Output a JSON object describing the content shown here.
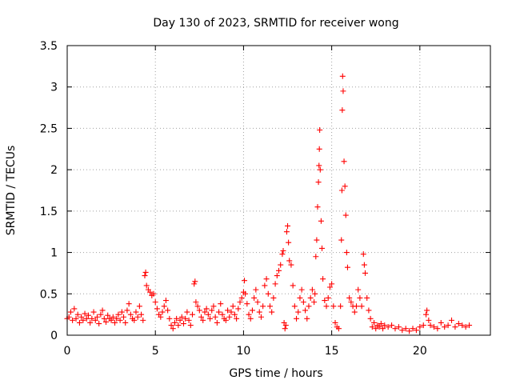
{
  "chart_data": {
    "type": "scatter",
    "title": "Day 130 of 2023, SRMTID for receiver wong",
    "xlabel": "GPS time / hours",
    "ylabel": "SRMTID / TECUs",
    "xlim": [
      0,
      24
    ],
    "ylim": [
      0,
      3.5
    ],
    "xticks": [
      0,
      5,
      10,
      15,
      20
    ],
    "xtick_labels": [
      "0",
      "5",
      "10",
      "15",
      "20"
    ],
    "yticks": [
      0,
      0.5,
      1,
      1.5,
      2,
      2.5,
      3,
      3.5
    ],
    "ytick_labels": [
      "0",
      "0.5",
      "1",
      "1.5",
      "2",
      "2.5",
      "3",
      "3.5"
    ],
    "grid": true,
    "marker": "+",
    "color": "#ff0000",
    "series": [
      {
        "name": "SRMTID",
        "points": [
          [
            0.0,
            0.2
          ],
          [
            0.1,
            0.22
          ],
          [
            0.2,
            0.28
          ],
          [
            0.3,
            0.18
          ],
          [
            0.4,
            0.32
          ],
          [
            0.5,
            0.2
          ],
          [
            0.6,
            0.25
          ],
          [
            0.7,
            0.15
          ],
          [
            0.8,
            0.22
          ],
          [
            0.9,
            0.18
          ],
          [
            1.0,
            0.26
          ],
          [
            1.1,
            0.2
          ],
          [
            1.2,
            0.24
          ],
          [
            1.3,
            0.15
          ],
          [
            1.4,
            0.2
          ],
          [
            1.5,
            0.28
          ],
          [
            1.6,
            0.18
          ],
          [
            1.7,
            0.22
          ],
          [
            1.8,
            0.14
          ],
          [
            1.9,
            0.25
          ],
          [
            2.0,
            0.3
          ],
          [
            2.1,
            0.2
          ],
          [
            2.2,
            0.16
          ],
          [
            2.3,
            0.24
          ],
          [
            2.4,
            0.2
          ],
          [
            2.5,
            0.18
          ],
          [
            2.6,
            0.22
          ],
          [
            2.7,
            0.15
          ],
          [
            2.8,
            0.2
          ],
          [
            2.9,
            0.25
          ],
          [
            3.0,
            0.18
          ],
          [
            3.1,
            0.28
          ],
          [
            3.2,
            0.22
          ],
          [
            3.3,
            0.15
          ],
          [
            3.4,
            0.3
          ],
          [
            3.5,
            0.38
          ],
          [
            3.6,
            0.25
          ],
          [
            3.7,
            0.2
          ],
          [
            3.8,
            0.18
          ],
          [
            3.9,
            0.28
          ],
          [
            4.0,
            0.22
          ],
          [
            4.1,
            0.35
          ],
          [
            4.2,
            0.25
          ],
          [
            4.3,
            0.18
          ],
          [
            4.4,
            0.72
          ],
          [
            4.45,
            0.76
          ],
          [
            4.5,
            0.6
          ],
          [
            4.6,
            0.55
          ],
          [
            4.7,
            0.52
          ],
          [
            4.8,
            0.48
          ],
          [
            4.9,
            0.5
          ],
          [
            5.0,
            0.4
          ],
          [
            5.1,
            0.32
          ],
          [
            5.2,
            0.25
          ],
          [
            5.3,
            0.22
          ],
          [
            5.4,
            0.28
          ],
          [
            5.5,
            0.35
          ],
          [
            5.6,
            0.42
          ],
          [
            5.7,
            0.3
          ],
          [
            5.8,
            0.2
          ],
          [
            5.9,
            0.12
          ],
          [
            6.0,
            0.08
          ],
          [
            6.1,
            0.15
          ],
          [
            6.2,
            0.2
          ],
          [
            6.3,
            0.12
          ],
          [
            6.4,
            0.18
          ],
          [
            6.5,
            0.22
          ],
          [
            6.6,
            0.14
          ],
          [
            6.7,
            0.2
          ],
          [
            6.8,
            0.28
          ],
          [
            6.9,
            0.18
          ],
          [
            7.0,
            0.12
          ],
          [
            7.1,
            0.25
          ],
          [
            7.2,
            0.62
          ],
          [
            7.25,
            0.65
          ],
          [
            7.3,
            0.4
          ],
          [
            7.4,
            0.35
          ],
          [
            7.5,
            0.3
          ],
          [
            7.6,
            0.22
          ],
          [
            7.7,
            0.18
          ],
          [
            7.8,
            0.28
          ],
          [
            7.9,
            0.32
          ],
          [
            8.0,
            0.25
          ],
          [
            8.1,
            0.2
          ],
          [
            8.2,
            0.3
          ],
          [
            8.3,
            0.35
          ],
          [
            8.4,
            0.22
          ],
          [
            8.5,
            0.15
          ],
          [
            8.6,
            0.28
          ],
          [
            8.7,
            0.38
          ],
          [
            8.8,
            0.25
          ],
          [
            8.9,
            0.2
          ],
          [
            9.0,
            0.18
          ],
          [
            9.1,
            0.3
          ],
          [
            9.2,
            0.22
          ],
          [
            9.3,
            0.28
          ],
          [
            9.4,
            0.35
          ],
          [
            9.5,
            0.25
          ],
          [
            9.6,
            0.2
          ],
          [
            9.7,
            0.32
          ],
          [
            9.8,
            0.4
          ],
          [
            9.9,
            0.45
          ],
          [
            10.0,
            0.52
          ],
          [
            10.05,
            0.66
          ],
          [
            10.1,
            0.5
          ],
          [
            10.2,
            0.38
          ],
          [
            10.3,
            0.25
          ],
          [
            10.4,
            0.2
          ],
          [
            10.5,
            0.3
          ],
          [
            10.6,
            0.45
          ],
          [
            10.7,
            0.55
          ],
          [
            10.8,
            0.4
          ],
          [
            10.9,
            0.28
          ],
          [
            11.0,
            0.22
          ],
          [
            11.1,
            0.35
          ],
          [
            11.2,
            0.6
          ],
          [
            11.3,
            0.68
          ],
          [
            11.4,
            0.5
          ],
          [
            11.5,
            0.35
          ],
          [
            11.6,
            0.28
          ],
          [
            11.7,
            0.45
          ],
          [
            11.8,
            0.62
          ],
          [
            11.9,
            0.72
          ],
          [
            12.0,
            0.78
          ],
          [
            12.1,
            0.85
          ],
          [
            12.2,
            0.98
          ],
          [
            12.25,
            1.02
          ],
          [
            12.3,
            0.15
          ],
          [
            12.35,
            0.08
          ],
          [
            12.4,
            0.12
          ],
          [
            12.45,
            1.25
          ],
          [
            12.5,
            1.32
          ],
          [
            12.55,
            1.12
          ],
          [
            12.6,
            0.9
          ],
          [
            12.7,
            0.85
          ],
          [
            12.8,
            0.6
          ],
          [
            12.9,
            0.35
          ],
          [
            13.0,
            0.2
          ],
          [
            13.1,
            0.28
          ],
          [
            13.2,
            0.45
          ],
          [
            13.3,
            0.55
          ],
          [
            13.4,
            0.4
          ],
          [
            13.5,
            0.3
          ],
          [
            13.6,
            0.2
          ],
          [
            13.7,
            0.35
          ],
          [
            13.8,
            0.45
          ],
          [
            13.9,
            0.55
          ],
          [
            14.0,
            0.4
          ],
          [
            14.05,
            0.5
          ],
          [
            14.1,
            0.95
          ],
          [
            14.15,
            1.15
          ],
          [
            14.2,
            1.55
          ],
          [
            14.25,
            1.85
          ],
          [
            14.28,
            2.05
          ],
          [
            14.3,
            2.25
          ],
          [
            14.32,
            2.48
          ],
          [
            14.35,
            2.0
          ],
          [
            14.4,
            1.38
          ],
          [
            14.45,
            1.05
          ],
          [
            14.5,
            0.68
          ],
          [
            14.6,
            0.42
          ],
          [
            14.7,
            0.35
          ],
          [
            14.8,
            0.45
          ],
          [
            14.9,
            0.58
          ],
          [
            15.0,
            0.62
          ],
          [
            15.1,
            0.35
          ],
          [
            15.2,
            0.15
          ],
          [
            15.3,
            0.1
          ],
          [
            15.4,
            0.08
          ],
          [
            15.5,
            0.35
          ],
          [
            15.55,
            1.15
          ],
          [
            15.58,
            1.75
          ],
          [
            15.6,
            2.72
          ],
          [
            15.62,
            3.13
          ],
          [
            15.65,
            2.95
          ],
          [
            15.7,
            2.1
          ],
          [
            15.75,
            1.8
          ],
          [
            15.8,
            1.45
          ],
          [
            15.85,
            1.0
          ],
          [
            15.9,
            0.82
          ],
          [
            16.0,
            0.45
          ],
          [
            16.1,
            0.4
          ],
          [
            16.2,
            0.35
          ],
          [
            16.3,
            0.28
          ],
          [
            16.4,
            0.35
          ],
          [
            16.5,
            0.55
          ],
          [
            16.6,
            0.45
          ],
          [
            16.7,
            0.35
          ],
          [
            16.8,
            0.98
          ],
          [
            16.85,
            0.85
          ],
          [
            16.9,
            0.75
          ],
          [
            17.0,
            0.45
          ],
          [
            17.1,
            0.3
          ],
          [
            17.2,
            0.2
          ],
          [
            17.3,
            0.1
          ],
          [
            17.4,
            0.15
          ],
          [
            17.5,
            0.08
          ],
          [
            17.6,
            0.12
          ],
          [
            17.7,
            0.1
          ],
          [
            17.8,
            0.14
          ],
          [
            17.9,
            0.08
          ],
          [
            18.0,
            0.12
          ],
          [
            18.2,
            0.1
          ],
          [
            18.4,
            0.12
          ],
          [
            18.6,
            0.08
          ],
          [
            18.8,
            0.1
          ],
          [
            19.0,
            0.06
          ],
          [
            19.2,
            0.08
          ],
          [
            19.4,
            0.05
          ],
          [
            19.6,
            0.08
          ],
          [
            19.8,
            0.06
          ],
          [
            20.0,
            0.1
          ],
          [
            20.2,
            0.12
          ],
          [
            20.35,
            0.25
          ],
          [
            20.4,
            0.3
          ],
          [
            20.5,
            0.18
          ],
          [
            20.6,
            0.12
          ],
          [
            20.8,
            0.1
          ],
          [
            21.0,
            0.08
          ],
          [
            21.2,
            0.15
          ],
          [
            21.4,
            0.1
          ],
          [
            21.6,
            0.12
          ],
          [
            21.8,
            0.18
          ],
          [
            22.0,
            0.1
          ],
          [
            22.2,
            0.14
          ],
          [
            22.4,
            0.12
          ],
          [
            22.6,
            0.1
          ],
          [
            22.8,
            0.12
          ]
        ]
      }
    ]
  }
}
